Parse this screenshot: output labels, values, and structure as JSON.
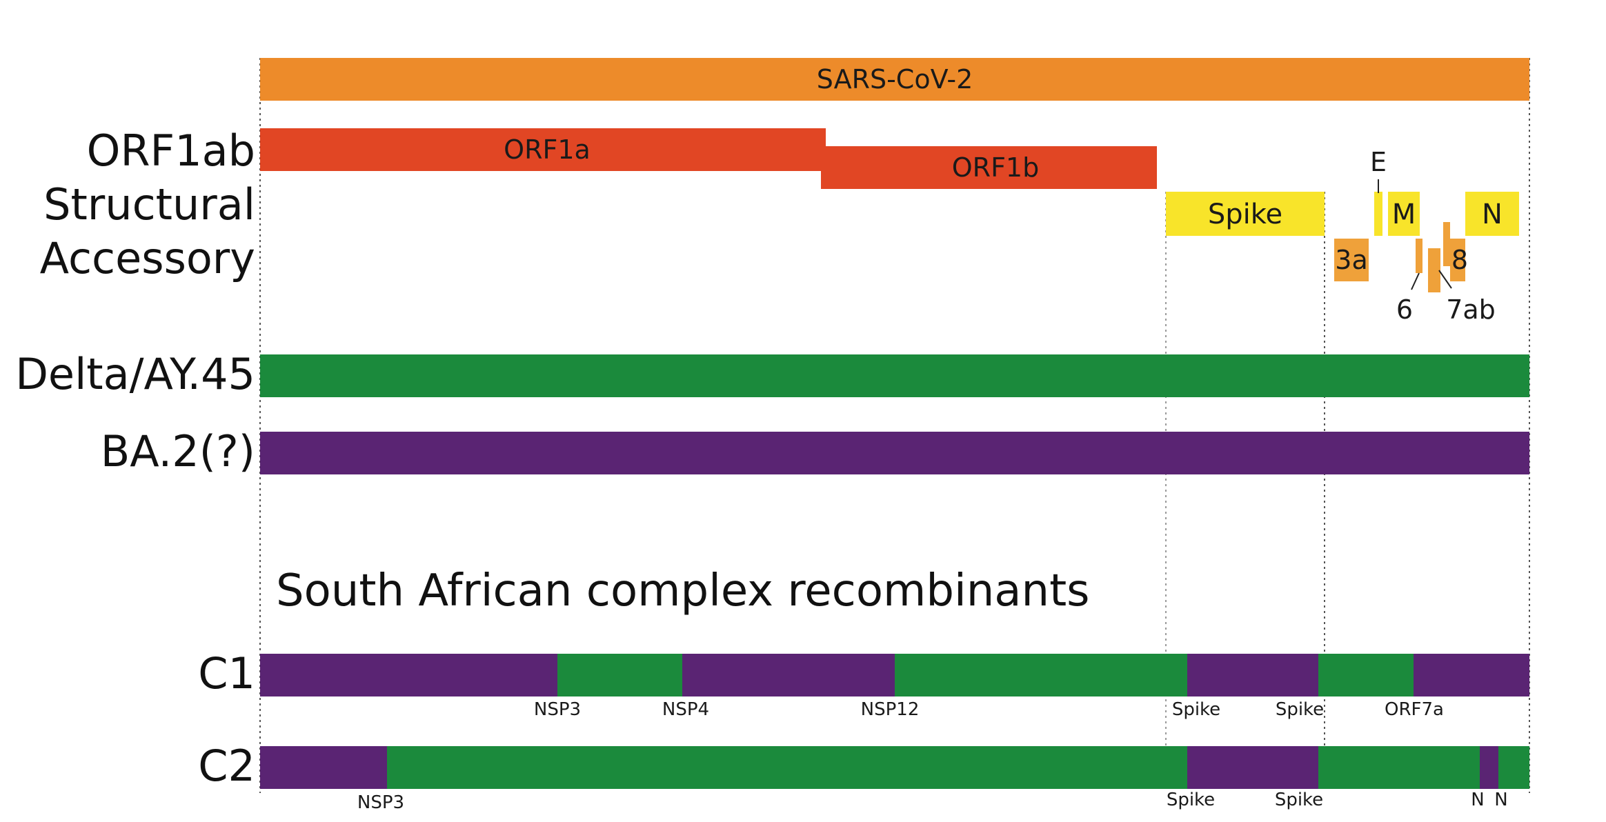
{
  "colors": {
    "sars": "#ED8B2A",
    "orf1": "#E14624",
    "structural": "#F8E42A",
    "accessory": "#EFA13A",
    "delta": "#1B8A3C",
    "ba2": "#5A2473",
    "guide": "#555555"
  },
  "rows": {
    "orf1ab": "ORF1ab",
    "structural": "Structural",
    "accessory": "Accessory",
    "delta": "Delta/AY.45",
    "ba2": "BA.2(?)",
    "c1": "C1",
    "c2": "C2"
  },
  "genome": {
    "label": "SARS-CoV-2"
  },
  "genes": {
    "orf1a": "ORF1a",
    "orf1b": "ORF1b",
    "spike": "Spike",
    "e": "E",
    "m": "M",
    "n": "N",
    "orf3a": "3a",
    "orf6": "6",
    "orf7ab": "7ab",
    "orf8": "8"
  },
  "section_title": "South African complex recombinants",
  "recombinants": {
    "c1": {
      "segments": [
        "BA.2",
        "Delta",
        "BA.2",
        "Delta",
        "BA.2",
        "Delta",
        "BA.2"
      ],
      "breakpoints": [
        "NSP3",
        "NSP4",
        "NSP12",
        "Spike",
        "Spike",
        "ORF7a"
      ]
    },
    "c2": {
      "segments": [
        "BA.2",
        "Delta",
        "BA.2",
        "Delta",
        "BA.2",
        "Delta"
      ],
      "breakpoints": [
        "NSP3",
        "Spike",
        "Spike",
        "N",
        "N"
      ]
    }
  }
}
